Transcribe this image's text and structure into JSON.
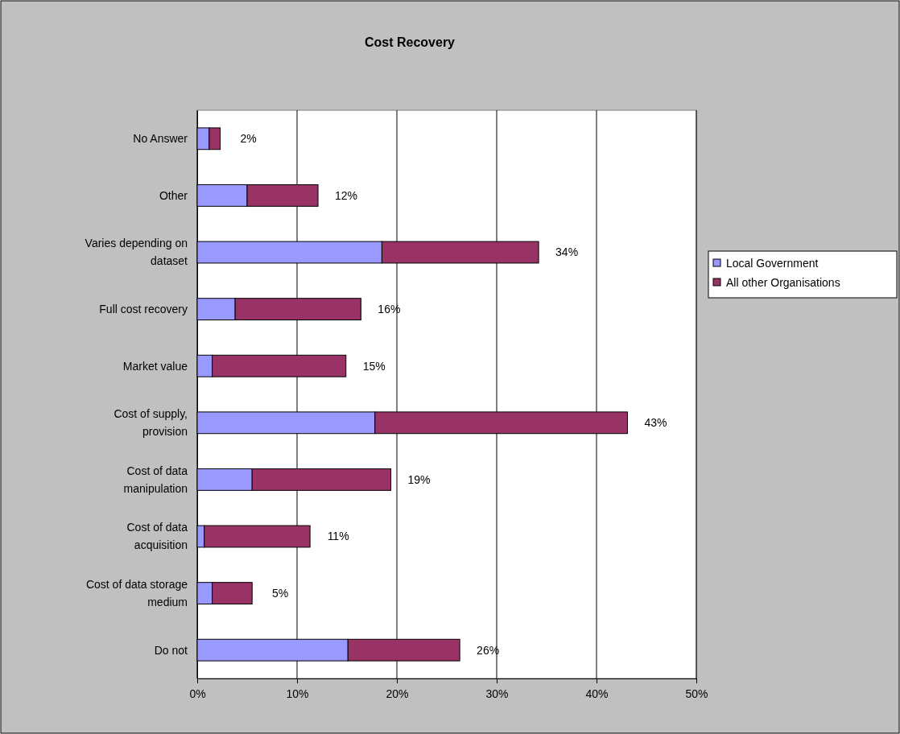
{
  "chart_data": {
    "type": "bar",
    "title": "Cost Recovery",
    "orientation": "horizontal",
    "stacked": true,
    "categories": [
      "No Answer",
      "Other",
      "Varies depending on dataset",
      "Full cost recovery",
      "Market value",
      "Cost of supply, provision",
      "Cost of data manipulation",
      "Cost of data acquisition",
      "Cost of data storage medium",
      "Do not"
    ],
    "series": [
      {
        "name": "Local Government",
        "color": "#9999ff",
        "values": [
          1.2,
          5.0,
          18.5,
          3.8,
          1.5,
          17.8,
          5.5,
          0.7,
          1.5,
          15.1
        ]
      },
      {
        "name": "All other Organisations",
        "color": "#993366",
        "values": [
          1.1,
          7.1,
          15.7,
          12.6,
          13.4,
          25.3,
          13.9,
          10.6,
          4.0,
          11.2
        ]
      }
    ],
    "totals": [
      "2%",
      "12%",
      "34%",
      "16%",
      "15%",
      "43%",
      "19%",
      "11%",
      "5%",
      "26%"
    ],
    "xlim": [
      0,
      50
    ],
    "xticks": [
      {
        "value": 0,
        "label": "0%"
      },
      {
        "value": 10,
        "label": "10%"
      },
      {
        "value": 20,
        "label": "20%"
      },
      {
        "value": 30,
        "label": "30%"
      },
      {
        "value": 40,
        "label": "40%"
      },
      {
        "value": 50,
        "label": "50%"
      }
    ],
    "grid": "x",
    "legend": "right"
  }
}
